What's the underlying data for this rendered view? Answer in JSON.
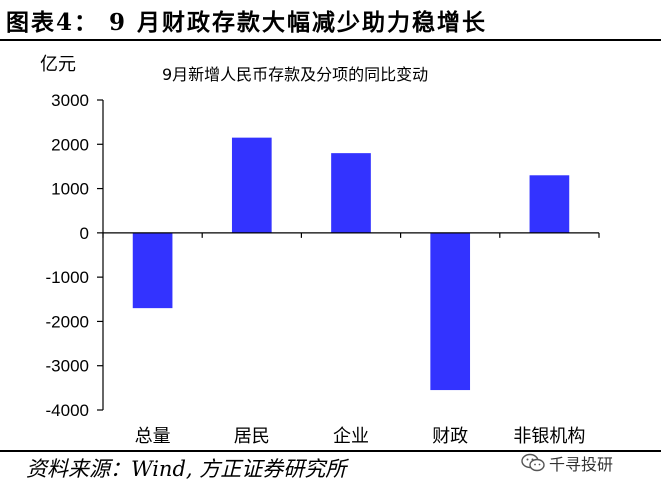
{
  "figure_title": "图表4：  9 月财政存款大幅减少助力稳增长",
  "source": "资料来源：Wind, 方正证券研究所",
  "watermark": "千寻投研",
  "colors": {
    "bar": "#3333ff",
    "axis": "#000000"
  },
  "chart_data": {
    "type": "bar",
    "title": "9月新增人民币存款及分项的同比变动",
    "unit": "亿元",
    "categories": [
      "总量",
      "居民",
      "企业",
      "财政",
      "非银机构"
    ],
    "values": [
      -1700,
      2150,
      1800,
      -3550,
      1300
    ],
    "ylim": [
      -4000,
      3000
    ],
    "yticks": [
      3000,
      2000,
      1000,
      0,
      -1000,
      -2000,
      -3000,
      -4000
    ],
    "ytick_labels": [
      "3000",
      "2000",
      "1000",
      "0",
      "-1000",
      "-2000",
      "-3000",
      "-4000"
    ],
    "grid": false,
    "legend": "none"
  }
}
